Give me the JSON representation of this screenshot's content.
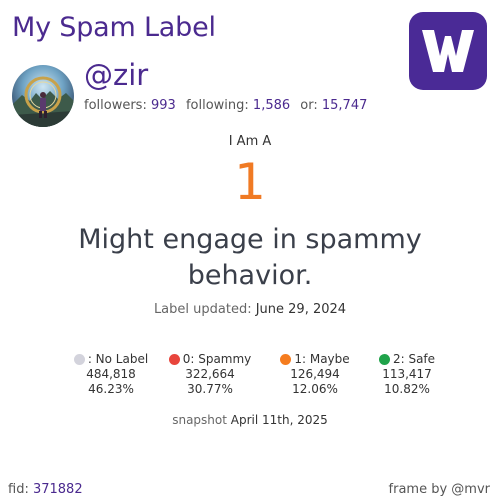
{
  "header": {
    "title": "My Spam Label",
    "brand_letter": "W",
    "brand_color": "#4a2a96"
  },
  "profile": {
    "handle": "@zir",
    "followers_label": "followers:",
    "followers": "993",
    "following_label": "following:",
    "following": "1,586",
    "or_label": "or:",
    "or": "15,747"
  },
  "label": {
    "intro": "I Am A",
    "value": "1",
    "value_color": "#f07a24",
    "description": "Might engage in spammy behavior.",
    "updated_label": "Label updated:",
    "updated_date": "June 29, 2024"
  },
  "legend": [
    {
      "label": ": No Label",
      "count": "484,818",
      "percent": "46.23%",
      "color": "#d3d3dc"
    },
    {
      "label": "0: Spammy",
      "count": "322,664",
      "percent": "30.77%",
      "color": "#e8453c"
    },
    {
      "label": "1: Maybe",
      "count": "126,494",
      "percent": "12.06%",
      "color": "#f57c1f"
    },
    {
      "label": "2: Safe",
      "count": "113,417",
      "percent": "10.82%",
      "color": "#1fa34a"
    }
  ],
  "snapshot": {
    "label": "snapshot",
    "date": "April 11th, 2025"
  },
  "footer": {
    "fid_label": "fid:",
    "fid": "371882",
    "frame_by": "frame by @mvr"
  }
}
